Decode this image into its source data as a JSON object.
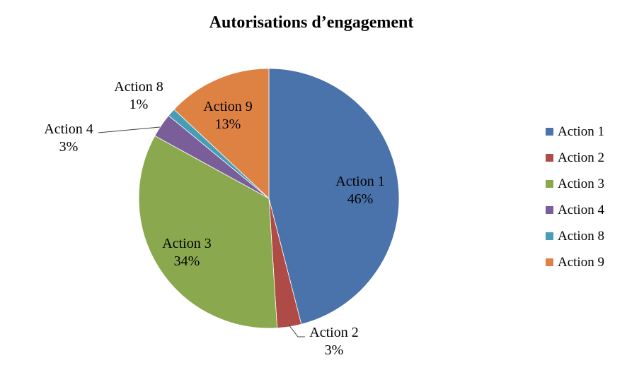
{
  "chart_data": {
    "type": "pie",
    "title": "Autorisations d’engagement",
    "categories": [
      "Action 1",
      "Action 2",
      "Action 3",
      "Action 4",
      "Action 8",
      "Action 9"
    ],
    "values": [
      46,
      3,
      34,
      3,
      1,
      13
    ],
    "unit": "%",
    "colors": [
      "#4A73AB",
      "#AF4B47",
      "#8AA84D",
      "#7A5E9A",
      "#459EB5",
      "#DE8244"
    ],
    "direction": "clockwise",
    "start_angle_deg": 0,
    "legend_position": "right",
    "background": "#FFFFFF",
    "label_line_color": "#404040",
    "slice_label_format": "{category}\n{value}%"
  }
}
